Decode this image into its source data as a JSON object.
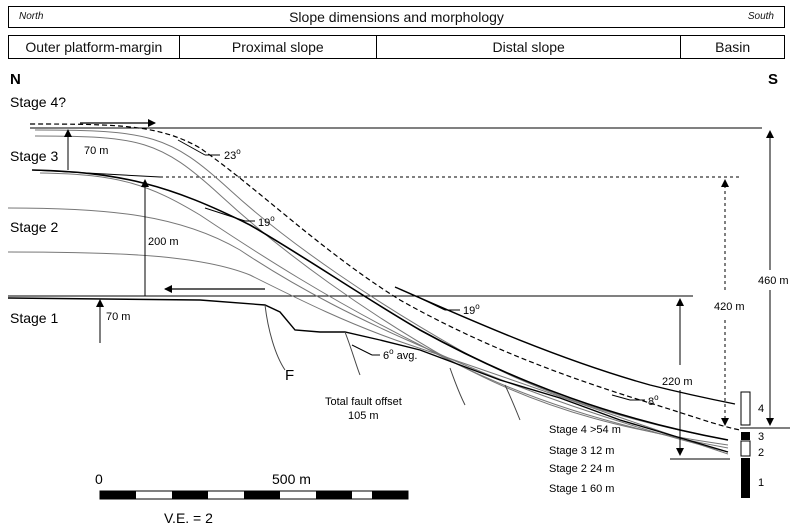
{
  "header": {
    "north": "North",
    "title": "Slope dimensions and morphology",
    "south": "South"
  },
  "zones": [
    "Outer platform-margin",
    "Proximal slope",
    "Distal slope",
    "Basin"
  ],
  "compass": {
    "n": "N",
    "s": "S"
  },
  "stages": [
    "Stage 4?",
    "Stage 3",
    "Stage 2",
    "Stage 1"
  ],
  "dims": {
    "h70top": "70 m",
    "h200": "200 m",
    "h70bot": "70 m",
    "h460": "460 m",
    "h420": "420 m",
    "h220": "220 m"
  },
  "angles": {
    "a23": "23",
    "a19a": "19",
    "a19b": "19",
    "a6": "6",
    "a6suffix": " avg.",
    "a8": "8",
    "deg": "o"
  },
  "fault": {
    "label": "F",
    "offset_line1": "Total fault offset",
    "offset_line2": "105 m"
  },
  "column": {
    "rows": [
      "Stage 4 >54 m",
      "Stage 3  12 m",
      "Stage 2  24 m",
      "Stage 1  60 m"
    ],
    "nums": [
      "4",
      "3",
      "2",
      "1"
    ]
  },
  "scale": {
    "zero": "0",
    "max": "500 m",
    "ve": "V.E. = 2"
  }
}
